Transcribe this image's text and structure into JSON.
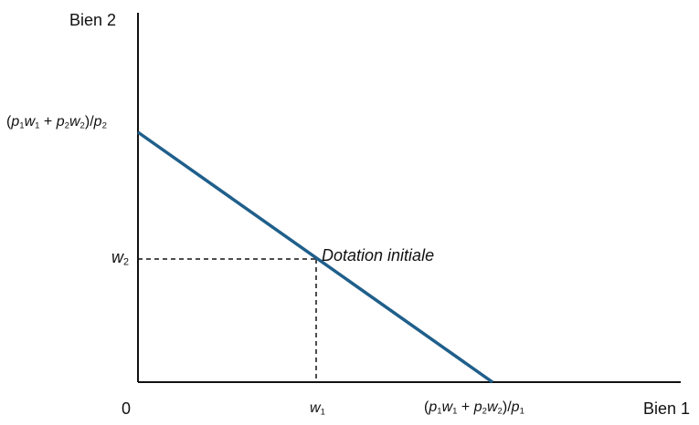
{
  "labels": {
    "y_axis": "Bien 2",
    "x_axis": "Bien 1",
    "origin": "0",
    "endowment": "Dotation initiale"
  },
  "y_intercept": {
    "open": "(",
    "p1": "p",
    "p1_sub": "1",
    "w1": "w",
    "w1_sub": "1",
    "plus": " + ",
    "p2": "p",
    "p2_sub": "2",
    "w2": "w",
    "w2_sub": "2",
    "close": ")/",
    "pd": "p",
    "pd_sub": "2"
  },
  "x_intercept": {
    "open": "(",
    "p1": "p",
    "p1_sub": "1",
    "w1": "w",
    "w1_sub": "1",
    "plus": " + ",
    "p2": "p",
    "p2_sub": "2",
    "w2": "w",
    "w2_sub": "2",
    "close": ")/",
    "pd": "p",
    "pd_sub": "1"
  },
  "w2_tick": {
    "w": "w",
    "sub": "2"
  },
  "w1_tick": {
    "w": "w",
    "sub": "1"
  },
  "colors": {
    "budget_line": "#1f5f8b",
    "axes": "#111111",
    "guides": "#111111"
  }
}
